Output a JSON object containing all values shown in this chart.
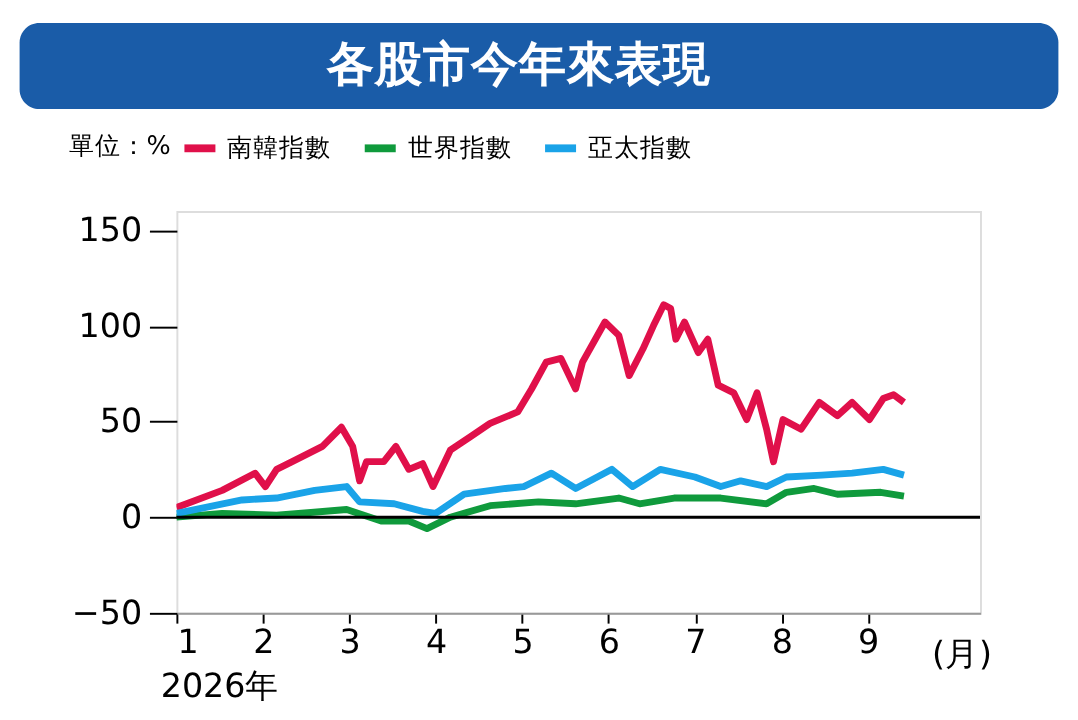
{
  "chart_data": {
    "type": "line",
    "title": "各股市今年來表現",
    "legend_title": "單位：%",
    "xlabel": "(月)",
    "annotations": [
      "2026年"
    ],
    "xlim": [
      1,
      10.3
    ],
    "xticks": [
      1,
      2,
      3,
      4,
      5,
      6,
      7,
      8,
      9
    ],
    "ylim": [
      -50,
      160
    ],
    "yticks": [
      -50,
      0,
      50,
      100,
      150
    ],
    "grid": false,
    "legend": "top",
    "marker": "none",
    "line_style": "solid",
    "ref_lines": [
      {
        "axis": "y",
        "value": 0,
        "color": "#000000"
      }
    ],
    "series": [
      {
        "name": "南韓指數",
        "color": "#e0104a",
        "x": [
          1.0,
          1.53,
          1.91,
          2.03,
          2.16,
          2.34,
          2.69,
          2.91,
          3.04,
          3.12,
          3.2,
          3.4,
          3.54,
          3.69,
          3.85,
          3.97,
          4.17,
          4.4,
          4.63,
          4.95,
          5.11,
          5.28,
          5.45,
          5.62,
          5.7,
          5.96,
          6.12,
          6.24,
          6.4,
          6.52,
          6.64,
          6.72,
          6.78,
          6.88,
          7.04,
          7.15,
          7.27,
          7.45,
          7.6,
          7.72,
          7.83,
          7.91,
          8.02,
          8.23,
          8.44,
          8.65,
          8.82,
          9.02,
          9.18,
          9.3,
          9.42
        ],
        "values": [
          5,
          14,
          23,
          16,
          25,
          29,
          37,
          47,
          37,
          19,
          29,
          29,
          37,
          25,
          28,
          16,
          35,
          42,
          49,
          55,
          67,
          81,
          83,
          67,
          81,
          102,
          95,
          74,
          88,
          100,
          111,
          109,
          93,
          102,
          86,
          93,
          69,
          65,
          51,
          65,
          46,
          29,
          51,
          46,
          60,
          53,
          60,
          51,
          62,
          64,
          60
        ]
      },
      {
        "name": "世界指數",
        "color": "#0f9a3c",
        "x": [
          1.0,
          1.53,
          2.16,
          2.97,
          3.37,
          3.69,
          3.9,
          4.17,
          4.63,
          5.19,
          5.62,
          6.12,
          6.36,
          6.76,
          7.3,
          7.83,
          8.06,
          8.38,
          8.65,
          9.15,
          9.42
        ],
        "values": [
          0,
          2,
          1,
          4,
          -2,
          -2,
          -6,
          0,
          6,
          8,
          7,
          10,
          7,
          10,
          10,
          7,
          13,
          15,
          12,
          13,
          11
        ]
      },
      {
        "name": "亞太指數",
        "color": "#1aa3e8",
        "x": [
          1.0,
          1.76,
          2.16,
          2.6,
          2.97,
          3.12,
          3.52,
          3.85,
          4.0,
          4.33,
          4.81,
          5.02,
          5.34,
          5.62,
          6.04,
          6.28,
          6.6,
          7.0,
          7.3,
          7.53,
          7.83,
          8.06,
          8.47,
          8.82,
          9.18,
          9.42
        ],
        "values": [
          2,
          9,
          10,
          14,
          16,
          8,
          7,
          3,
          2,
          12,
          15,
          16,
          23,
          15,
          25,
          16,
          25,
          21,
          16,
          19,
          16,
          21,
          22,
          23,
          25,
          22
        ]
      }
    ]
  }
}
